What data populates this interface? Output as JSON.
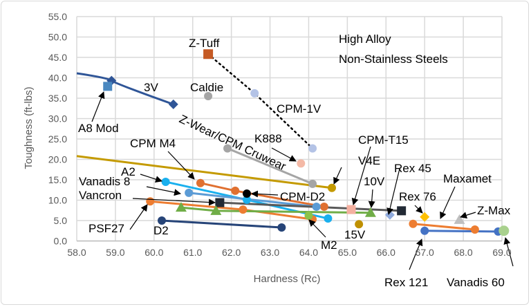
{
  "chart_data": {
    "type": "scatter",
    "title_lines": [
      "High Alloy",
      "Non-Stainless Steels"
    ],
    "xlabel": "Hardness (Rc)",
    "ylabel": "Toughness (ft-lbs)",
    "xlim": [
      58,
      69
    ],
    "ylim": [
      0,
      55
    ],
    "x_ticks": [
      "58.0",
      "59.0",
      "60.0",
      "61.0",
      "62.0",
      "63.0",
      "64.0",
      "65.0",
      "66.0",
      "67.0",
      "68.0",
      "69.0"
    ],
    "y_ticks": [
      "0.0",
      "5.0",
      "10.0",
      "15.0",
      "20.0",
      "25.0",
      "30.0",
      "35.0",
      "40.0",
      "45.0",
      "50.0",
      "55.0"
    ],
    "grid": true,
    "series": [
      {
        "name": "3V",
        "color": "#2f5597",
        "marker": "diamond",
        "line": "solid",
        "x": [
          58.0,
          58.9,
          60.5
        ],
        "y": [
          41.1,
          39.3,
          33.5
        ],
        "marker_from": 1
      },
      {
        "name": "A8 Mod",
        "color": "#4a88c0",
        "marker": "square",
        "x": [
          58.8
        ],
        "y": [
          37.9
        ]
      },
      {
        "name": "Z-Tuff",
        "color": "#c55a24",
        "marker": "bigsquare",
        "x": [
          61.4
        ],
        "y": [
          45.8
        ]
      },
      {
        "name": "CPM-1V",
        "color": "#b4c3e6",
        "marker": "circle",
        "line": "dotted",
        "x": [
          61.4,
          62.6,
          64.1
        ],
        "y": [
          45.8,
          36.2,
          22.7
        ],
        "marker_from": 1
      },
      {
        "name": "Caldie",
        "color": "#a5a5a5",
        "marker": "circle",
        "x": [
          61.4
        ],
        "y": [
          35.5
        ]
      },
      {
        "name": "Z-Wear/CPM Cruwear",
        "color": "#a5a5a5",
        "marker": "circle",
        "line": "solid",
        "x": [
          61.9,
          64.1
        ],
        "y": [
          22.7,
          14.0
        ]
      },
      {
        "name": "K888",
        "color": "#f4b9a6",
        "marker": "circle",
        "x": [
          63.8
        ],
        "y": [
          19.0
        ]
      },
      {
        "name": "V4E",
        "color": "#c49a00",
        "marker": "circle",
        "line": "solid",
        "x": [
          58.0,
          64.6
        ],
        "y": [
          20.8,
          13.0
        ],
        "marker_from": 1
      },
      {
        "name": "CPM M4",
        "color": "#e07030",
        "marker": "circle",
        "line": "solid",
        "x": [
          61.2,
          62.1,
          64.4
        ],
        "y": [
          14.2,
          12.3,
          8.4
        ]
      },
      {
        "name": "A2",
        "color": "#1ab0ee",
        "marker": "circle",
        "line": "solid",
        "x": [
          60.3,
          62.4,
          64.5
        ],
        "y": [
          14.5,
          10.1,
          5.5
        ]
      },
      {
        "name": "Vanadis 8",
        "color": "#5b9bd5",
        "marker": "circle",
        "line": "solid",
        "x": [
          60.9,
          64.2
        ],
        "y": [
          11.8,
          8.4
        ]
      },
      {
        "name": "Vancron",
        "color": "#222a35",
        "marker": "square",
        "line": "solid",
        "line_color": "#595959",
        "x": [
          61.7,
          66.4
        ],
        "y": [
          9.4,
          7.4
        ]
      },
      {
        "name": "CPM-T15",
        "color": "#f4b0a0",
        "marker": "square",
        "x": [
          65.1
        ],
        "y": [
          7.7
        ]
      },
      {
        "name": "CPM-D2",
        "color": "#000000",
        "marker": "circle",
        "x": [
          62.4
        ],
        "y": [
          11.6
        ]
      },
      {
        "name": "PSF27",
        "color": "#ed7d31",
        "marker": "circle",
        "line": "solid",
        "x": [
          59.9,
          62.3,
          64.1
        ],
        "y": [
          9.7,
          7.7,
          5.3
        ]
      },
      {
        "name": "10V",
        "color": "#70ad47",
        "marker": "triangle",
        "line": "solid",
        "x": [
          60.7,
          61.6,
          65.6
        ],
        "y": [
          8.2,
          7.4,
          6.9
        ]
      },
      {
        "name": "M2",
        "color": "#8bc34a",
        "marker": "circle",
        "x": [
          64.0
        ],
        "y": [
          6.2
        ]
      },
      {
        "name": "D2",
        "color": "#264478",
        "marker": "circle",
        "line": "solid",
        "x": [
          60.2,
          63.3
        ],
        "y": [
          5.0,
          3.3
        ]
      },
      {
        "name": "15V",
        "color": "#bf9000",
        "marker": "circle",
        "x": [
          65.3
        ],
        "y": [
          4.1
        ]
      },
      {
        "name": "Rex 45",
        "color": "#8faadc",
        "marker": "diamond",
        "x": [
          66.1
        ],
        "y": [
          6.4
        ]
      },
      {
        "name": "Rex 76",
        "color": "#ffc000",
        "marker": "diamond",
        "x": [
          67.0
        ],
        "y": [
          5.9
        ]
      },
      {
        "name": "Z-Max",
        "color": "#bfbfbf",
        "marker": "triangle",
        "x": [
          67.9
        ],
        "y": [
          5.2
        ]
      },
      {
        "name": "Maxamet",
        "color": "#ed7d31",
        "marker": "circle",
        "line": "solid",
        "x": [
          66.7,
          68.3
        ],
        "y": [
          4.2,
          2.8
        ]
      },
      {
        "name": "Rex 121",
        "color": "#4472c4",
        "marker": "circle",
        "line": "solid",
        "x": [
          67.0,
          68.9
        ],
        "y": [
          2.5,
          2.3
        ]
      },
      {
        "name": "Vanadis 60",
        "color": "#a9d18e",
        "marker": "bigcircle",
        "x": [
          69.05
        ],
        "y": [
          2.5
        ]
      }
    ],
    "annotations": [
      "Z-Tuff",
      "3V",
      "Caldie",
      "CPM-1V",
      "A8 Mod",
      "Z-Wear/CPM Cruwear",
      "K888",
      "CPM M4",
      "CPM-T15",
      "V4E",
      "A2",
      "Rex 45",
      "10V",
      "Vanadis 8",
      "CPM-D2",
      "Vancron",
      "Rex 76",
      "Maxamet",
      "Z-Max",
      "PSF27",
      "D2",
      "M2",
      "15V",
      "Rex 121",
      "Vanadis 60"
    ]
  }
}
